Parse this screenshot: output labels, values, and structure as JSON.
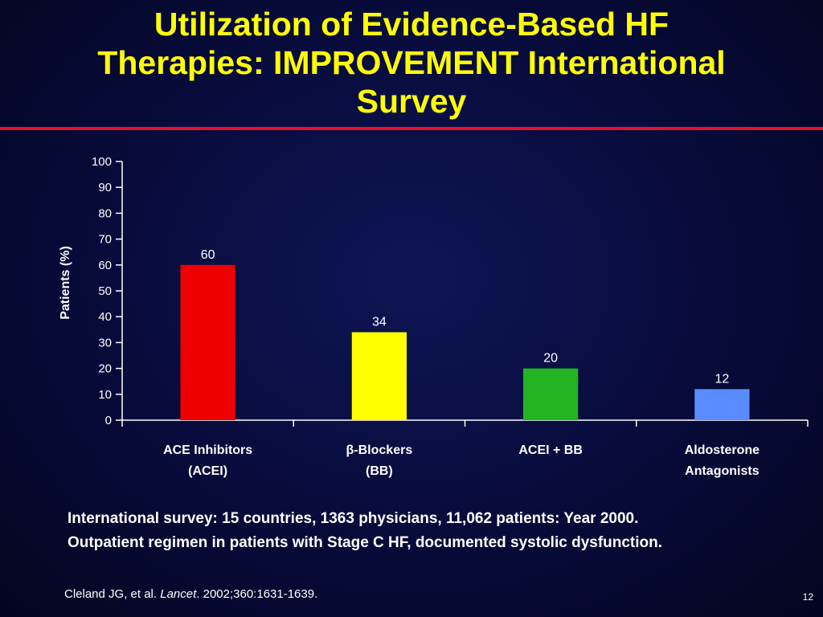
{
  "slide": {
    "title_lines": [
      "Utilization of Evidence-Based HF",
      "Therapies: IMPROVEMENT International",
      "Survey"
    ],
    "note_lines": [
      "International survey: 15 countries, 1363 physicians, 11,062 patients: Year 2000.",
      "Outpatient regimen in patients with Stage C HF, documented systolic dysfunction."
    ],
    "citation": {
      "authors": "Cleland JG, et al. ",
      "journal": "Lancet",
      "details": ". 2002;360:1631-1639."
    },
    "slide_number": "12",
    "colors": {
      "title": "#ffff00",
      "rule": "#e8102a",
      "background": "#070b3a"
    }
  },
  "chart_data": {
    "type": "bar",
    "categories": [
      [
        "ACE Inhibitors",
        "(ACEI)"
      ],
      [
        "β-Blockers",
        "(BB)"
      ],
      [
        "ACEI + BB"
      ],
      [
        "Aldosterone",
        "Antagonists"
      ]
    ],
    "values": [
      60,
      34,
      20,
      12
    ],
    "bar_colors": [
      "#ee0000",
      "#ffff00",
      "#22b422",
      "#5b8cff"
    ],
    "ylabel": "Patients (%)",
    "xlabel": "",
    "ylim": [
      0,
      100
    ],
    "yticks": [
      0,
      10,
      20,
      30,
      40,
      50,
      60,
      70,
      80,
      90,
      100
    ],
    "grid": false,
    "legend": "none"
  }
}
